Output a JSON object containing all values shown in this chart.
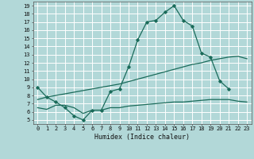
{
  "xlabel": "Humidex (Indice chaleur)",
  "bg_color": "#b2d8d8",
  "grid_color": "#ffffff",
  "line_color": "#1a6b5a",
  "xlim": [
    -0.5,
    23.5
  ],
  "ylim": [
    4.5,
    19.5
  ],
  "xticks": [
    0,
    1,
    2,
    3,
    4,
    5,
    6,
    7,
    8,
    9,
    10,
    11,
    12,
    13,
    14,
    15,
    16,
    17,
    18,
    19,
    20,
    21,
    22,
    23
  ],
  "yticks": [
    5,
    6,
    7,
    8,
    9,
    10,
    11,
    12,
    13,
    14,
    15,
    16,
    17,
    18,
    19
  ],
  "curve1_x": [
    0,
    1,
    2,
    3,
    4,
    5,
    6,
    7,
    8,
    9,
    10,
    11,
    12,
    13,
    14,
    15,
    16,
    17,
    18,
    19,
    20,
    21
  ],
  "curve1_y": [
    9.0,
    7.8,
    7.2,
    6.5,
    5.5,
    5.0,
    6.2,
    6.2,
    8.5,
    8.8,
    11.5,
    14.8,
    17.0,
    17.2,
    18.2,
    19.0,
    17.2,
    16.5,
    13.2,
    12.7,
    9.8,
    8.8
  ],
  "curve2_x": [
    0,
    1,
    2,
    3,
    4,
    5,
    6,
    7,
    8,
    9,
    10,
    11,
    12,
    13,
    14,
    15,
    16,
    17,
    18,
    19,
    20,
    21,
    22,
    23
  ],
  "curve2_y": [
    7.5,
    7.8,
    8.0,
    8.2,
    8.4,
    8.6,
    8.8,
    9.0,
    9.2,
    9.4,
    9.7,
    10.0,
    10.3,
    10.6,
    10.9,
    11.2,
    11.5,
    11.8,
    12.0,
    12.3,
    12.5,
    12.7,
    12.8,
    12.5
  ],
  "curve3_x": [
    0,
    1,
    2,
    3,
    4,
    5,
    6,
    7,
    8,
    9,
    10,
    11,
    12,
    13,
    14,
    15,
    16,
    17,
    18,
    19,
    20,
    21,
    22,
    23
  ],
  "curve3_y": [
    6.5,
    6.3,
    6.8,
    6.8,
    6.5,
    5.8,
    6.2,
    6.2,
    6.5,
    6.5,
    6.7,
    6.8,
    6.9,
    7.0,
    7.1,
    7.2,
    7.2,
    7.3,
    7.4,
    7.5,
    7.5,
    7.5,
    7.3,
    7.2
  ]
}
